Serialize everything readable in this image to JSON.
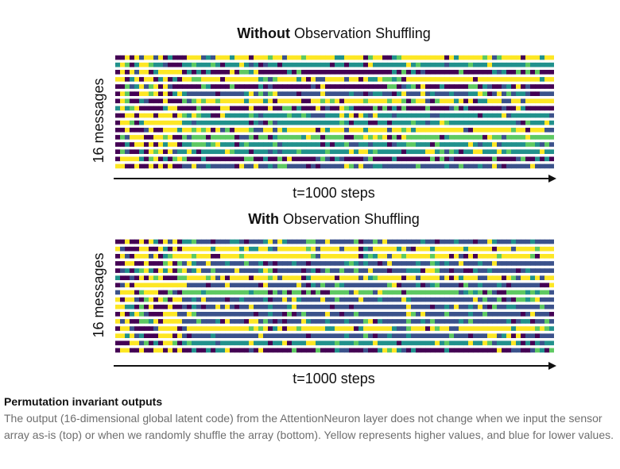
{
  "chart_data": [
    {
      "type": "heatmap",
      "title_bold": "Without",
      "title_rest": " Observation Shuffling",
      "ylabel": "16 messages",
      "xlabel": "t=1000 steps",
      "rows": 16,
      "colorscale": "viridis",
      "colors": [
        "#440154",
        "#3b528b",
        "#21918c",
        "#5ec962",
        "#fde725"
      ]
    },
    {
      "type": "heatmap",
      "title_bold": "With",
      "title_rest": " Observation Shuffling",
      "ylabel": "16 messages",
      "xlabel": "t=1000 steps",
      "rows": 16,
      "colorscale": "viridis",
      "colors": [
        "#440154",
        "#3b528b",
        "#21918c",
        "#5ec962",
        "#fde725"
      ]
    }
  ],
  "caption": {
    "title": "Permutation invariant outputs",
    "body": "The output (16-dimensional global latent code) from the AttentionNeuron layer does not change when we input the sensor array as-is (top) or when we randomly shuffle the array (bottom). Yellow represents higher values, and blue for lower values."
  }
}
